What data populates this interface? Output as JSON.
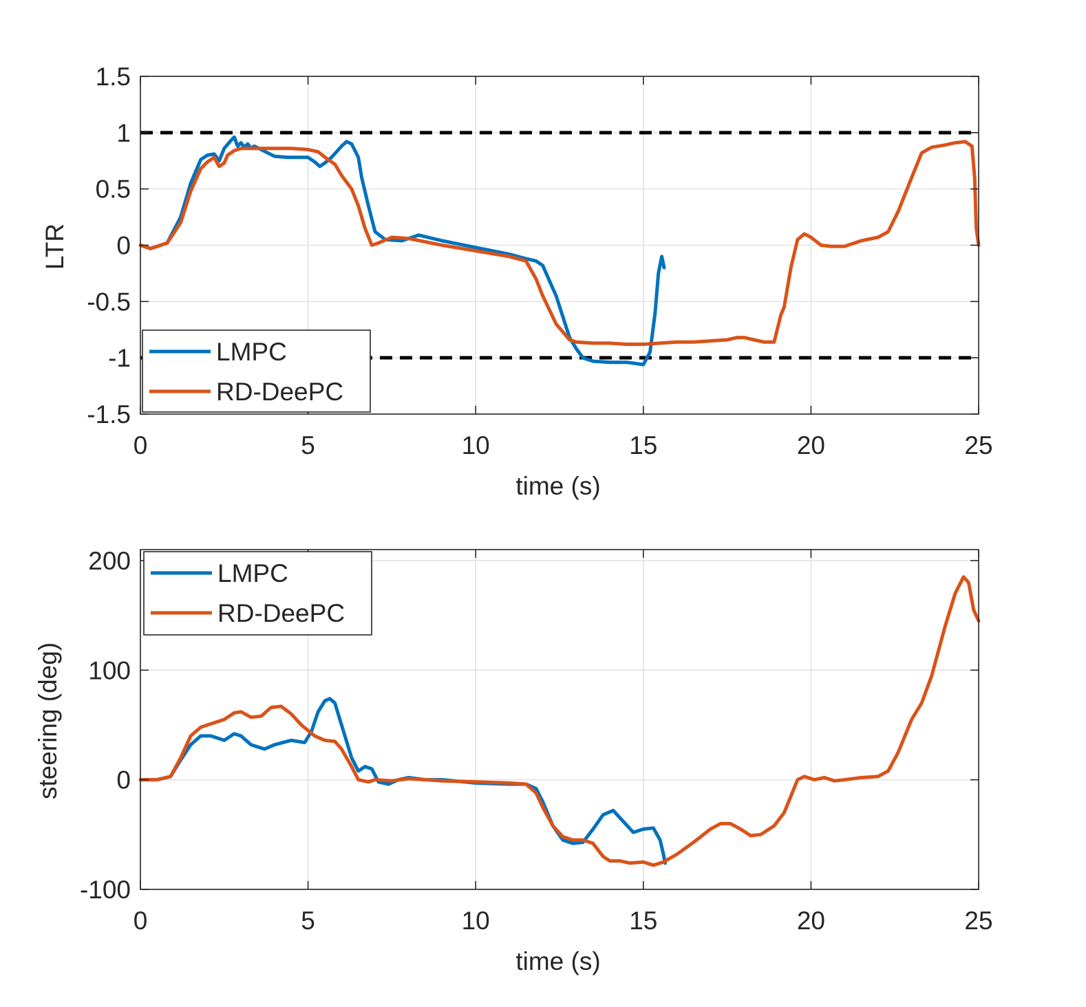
{
  "chart_data": [
    {
      "type": "line",
      "id": "ltr",
      "title": "",
      "xlabel": "time (s)",
      "ylabel": "LTR",
      "xlim": [
        0,
        25
      ],
      "ylim": [
        -1.5,
        1.5
      ],
      "xticks": [
        0,
        5,
        10,
        15,
        20,
        25
      ],
      "yticks": [
        -1.5,
        -1,
        -0.5,
        0,
        0.5,
        1,
        1.5
      ],
      "xtick_labels": [
        "0",
        "5",
        "10",
        "15",
        "20",
        "25"
      ],
      "ytick_labels": [
        "-1.5",
        "-1",
        "-0.5",
        "0",
        "0.5",
        "1",
        "1.5"
      ],
      "grid": true,
      "legend_position": "bottom-left",
      "reference_lines": [
        {
          "y": 1,
          "style": "dashed",
          "color": "#000000"
        },
        {
          "y": -1,
          "style": "dashed",
          "color": "#000000"
        }
      ],
      "series": [
        {
          "name": "LMPC",
          "color": "#0072BD",
          "x": [
            0,
            0.3,
            0.8,
            1.2,
            1.5,
            1.8,
            2.0,
            2.2,
            2.35,
            2.5,
            2.7,
            2.8,
            2.9,
            3.0,
            3.1,
            3.2,
            3.3,
            3.4,
            3.6,
            3.8,
            4.0,
            4.4,
            5.0,
            5.2,
            5.35,
            5.5,
            5.7,
            6.0,
            6.15,
            6.3,
            6.5,
            6.6,
            6.8,
            7.0,
            7.3,
            7.8,
            8.3,
            9.0,
            10.0,
            11.0,
            11.5,
            11.8,
            12.0,
            12.4,
            12.8,
            13.0,
            13.2,
            13.5,
            14.0,
            14.5,
            15.0,
            15.2,
            15.35,
            15.45,
            15.55,
            15.62
          ],
          "y": [
            0,
            -0.03,
            0.02,
            0.25,
            0.55,
            0.76,
            0.8,
            0.81,
            0.75,
            0.86,
            0.93,
            0.96,
            0.88,
            0.91,
            0.87,
            0.9,
            0.86,
            0.88,
            0.85,
            0.82,
            0.79,
            0.78,
            0.78,
            0.74,
            0.7,
            0.73,
            0.78,
            0.88,
            0.92,
            0.9,
            0.78,
            0.6,
            0.35,
            0.12,
            0.05,
            0.04,
            0.09,
            0.04,
            -0.02,
            -0.08,
            -0.12,
            -0.14,
            -0.18,
            -0.45,
            -0.82,
            -0.92,
            -1.0,
            -1.03,
            -1.04,
            -1.04,
            -1.06,
            -0.95,
            -0.6,
            -0.25,
            -0.1,
            -0.2
          ]
        },
        {
          "name": "RD-DeePC",
          "color": "#D95319",
          "x": [
            0,
            0.3,
            0.8,
            1.2,
            1.5,
            1.8,
            2.0,
            2.2,
            2.35,
            2.5,
            2.6,
            2.8,
            3.0,
            3.5,
            4.0,
            4.5,
            5.0,
            5.3,
            5.6,
            5.8,
            6.0,
            6.3,
            6.5,
            6.7,
            6.9,
            7.1,
            7.5,
            8.0,
            9.0,
            10.0,
            11.0,
            11.5,
            11.8,
            12.0,
            12.4,
            12.8,
            13.0,
            13.5,
            14.0,
            14.5,
            15.0,
            15.5,
            16.0,
            16.5,
            17.0,
            17.5,
            17.8,
            18.0,
            18.3,
            18.6,
            18.9,
            19.1,
            19.2,
            19.4,
            19.6,
            19.8,
            20.0,
            20.3,
            20.6,
            21.0,
            21.5,
            22.0,
            22.3,
            22.6,
            23.0,
            23.3,
            23.6,
            24.0,
            24.3,
            24.6,
            24.8,
            24.88,
            24.93,
            25.0
          ],
          "y": [
            0,
            -0.03,
            0.02,
            0.2,
            0.48,
            0.68,
            0.74,
            0.78,
            0.7,
            0.73,
            0.8,
            0.84,
            0.86,
            0.86,
            0.86,
            0.86,
            0.85,
            0.83,
            0.76,
            0.72,
            0.62,
            0.5,
            0.35,
            0.15,
            0.0,
            0.02,
            0.07,
            0.06,
            0.0,
            -0.05,
            -0.1,
            -0.14,
            -0.3,
            -0.45,
            -0.7,
            -0.84,
            -0.86,
            -0.87,
            -0.87,
            -0.88,
            -0.88,
            -0.87,
            -0.86,
            -0.86,
            -0.85,
            -0.84,
            -0.82,
            -0.82,
            -0.84,
            -0.86,
            -0.86,
            -0.62,
            -0.55,
            -0.2,
            0.05,
            0.1,
            0.07,
            0.0,
            -0.01,
            -0.01,
            0.04,
            0.07,
            0.12,
            0.3,
            0.6,
            0.82,
            0.87,
            0.89,
            0.91,
            0.92,
            0.88,
            0.6,
            0.15,
            0.0
          ]
        }
      ]
    },
    {
      "type": "line",
      "id": "steering",
      "title": "",
      "xlabel": "time (s)",
      "ylabel": "steering (deg)",
      "xlim": [
        0,
        25
      ],
      "ylim": [
        -100,
        210
      ],
      "xticks": [
        0,
        5,
        10,
        15,
        20,
        25
      ],
      "yticks": [
        -100,
        0,
        100,
        200
      ],
      "xtick_labels": [
        "0",
        "5",
        "10",
        "15",
        "20",
        "25"
      ],
      "ytick_labels": [
        "-100",
        "0",
        "100",
        "200"
      ],
      "grid": true,
      "legend_position": "top-left",
      "series": [
        {
          "name": "LMPC",
          "color": "#0072BD",
          "x": [
            0,
            0.5,
            0.9,
            1.2,
            1.5,
            1.8,
            2.1,
            2.5,
            2.8,
            3.0,
            3.3,
            3.7,
            4.0,
            4.5,
            4.9,
            5.1,
            5.3,
            5.5,
            5.65,
            5.8,
            6.0,
            6.3,
            6.5,
            6.7,
            6.9,
            7.1,
            7.4,
            7.7,
            8.0,
            8.5,
            9.0,
            10.0,
            11.0,
            11.5,
            11.8,
            12.0,
            12.3,
            12.6,
            12.9,
            13.2,
            13.5,
            13.8,
            14.1,
            14.4,
            14.7,
            15.0,
            15.3,
            15.5,
            15.6,
            15.65
          ],
          "y": [
            0,
            0,
            3,
            18,
            32,
            40,
            40,
            36,
            42,
            40,
            32,
            28,
            32,
            36,
            34,
            44,
            62,
            72,
            74,
            70,
            50,
            20,
            8,
            12,
            10,
            -2,
            -4,
            0,
            2,
            0,
            0,
            -3,
            -4,
            -4,
            -8,
            -20,
            -42,
            -55,
            -58,
            -57,
            -45,
            -32,
            -28,
            -38,
            -48,
            -45,
            -44,
            -55,
            -68,
            -76
          ]
        },
        {
          "name": "RD-DeePC",
          "color": "#D95319",
          "x": [
            0,
            0.5,
            0.9,
            1.2,
            1.5,
            1.8,
            2.1,
            2.5,
            2.8,
            3.0,
            3.3,
            3.6,
            3.9,
            4.2,
            4.5,
            4.8,
            5.2,
            5.5,
            5.8,
            6.0,
            6.3,
            6.5,
            6.8,
            7.0,
            7.5,
            8.0,
            8.5,
            9.0,
            10.0,
            11.0,
            11.5,
            11.8,
            12.0,
            12.3,
            12.6,
            12.9,
            13.2,
            13.5,
            13.8,
            14.0,
            14.3,
            14.6,
            15.0,
            15.3,
            15.6,
            16.0,
            16.5,
            17.0,
            17.3,
            17.6,
            17.9,
            18.2,
            18.5,
            18.9,
            19.2,
            19.4,
            19.6,
            19.8,
            20.1,
            20.4,
            20.7,
            21.0,
            21.5,
            22.0,
            22.3,
            22.6,
            23.0,
            23.3,
            23.6,
            24.0,
            24.3,
            24.55,
            24.7,
            24.85,
            25.0
          ],
          "y": [
            0,
            0,
            3,
            20,
            40,
            48,
            51,
            55,
            61,
            62,
            57,
            58,
            66,
            67,
            60,
            50,
            40,
            36,
            35,
            28,
            12,
            0,
            -2,
            0,
            -1,
            1,
            0,
            -1,
            -2,
            -3,
            -4,
            -12,
            -25,
            -42,
            -52,
            -55,
            -55,
            -58,
            -70,
            -74,
            -74,
            -76,
            -75,
            -78,
            -75,
            -68,
            -57,
            -45,
            -40,
            -40,
            -45,
            -51,
            -50,
            -42,
            -30,
            -15,
            0,
            3,
            0,
            2,
            -1,
            0,
            2,
            3,
            8,
            25,
            55,
            70,
            95,
            140,
            170,
            185,
            180,
            155,
            145
          ]
        }
      ]
    }
  ]
}
